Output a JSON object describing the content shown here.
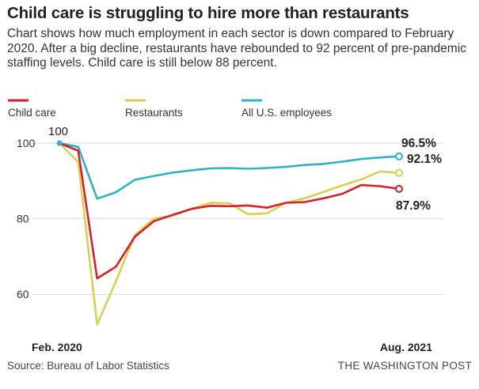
{
  "header": {
    "title": "Child care is struggling to hire more than restaurants",
    "subtitle": "Chart shows how much employment in each sector is down compared to February 2020. After a big decline, restaurants have rebounded to 92 percent of pre-pandemic staffing levels. Child care is still below 88 percent."
  },
  "footer": {
    "source": "Source: Bureau of Labor Statistics",
    "credit": "THE WASHINGTON POST"
  },
  "chart_data": {
    "type": "line",
    "title": "Child care is struggling to hire more than restaurants",
    "xlabel": "",
    "ylabel": "",
    "x_tick_labels": [
      "Feb. 2020",
      "Aug. 2021"
    ],
    "y_ticks": [
      60,
      80,
      100
    ],
    "ylim": [
      50,
      104
    ],
    "grid": true,
    "legend_position": "top",
    "start_annotation": "100",
    "x": [
      "Feb 2020",
      "Mar 2020",
      "Apr 2020",
      "May 2020",
      "Jun 2020",
      "Jul 2020",
      "Aug 2020",
      "Sep 2020",
      "Oct 2020",
      "Nov 2020",
      "Dec 2020",
      "Jan 2021",
      "Feb 2021",
      "Mar 2021",
      "Apr 2021",
      "May 2021",
      "Jun 2021",
      "Jul 2021",
      "Aug 2021"
    ],
    "series": [
      {
        "name": "Child care",
        "color": "#d6202b",
        "end_label": "87.9%",
        "values": [
          100,
          98,
          64.2,
          67.3,
          75.2,
          79.3,
          81.0,
          82.6,
          83.4,
          83.3,
          83.5,
          82.9,
          84.2,
          84.4,
          85.4,
          86.6,
          88.9,
          88.6,
          87.9
        ]
      },
      {
        "name": "Restaurants",
        "color": "#d8d050",
        "end_label": "92.1%",
        "values": [
          100,
          95,
          52.0,
          63.5,
          75.7,
          80.0,
          80.8,
          82.6,
          84.2,
          84.1,
          81.2,
          81.4,
          84.2,
          85.4,
          87.1,
          88.8,
          90.4,
          92.5,
          92.1
        ]
      },
      {
        "name": "All U.S. employees",
        "color": "#2fb3c4",
        "end_label": "96.5%",
        "values": [
          100,
          99,
          85.3,
          87.0,
          90.3,
          91.3,
          92.2,
          92.8,
          93.3,
          93.4,
          93.2,
          93.4,
          93.7,
          94.2,
          94.5,
          95.1,
          95.8,
          96.2,
          96.5
        ]
      }
    ]
  }
}
